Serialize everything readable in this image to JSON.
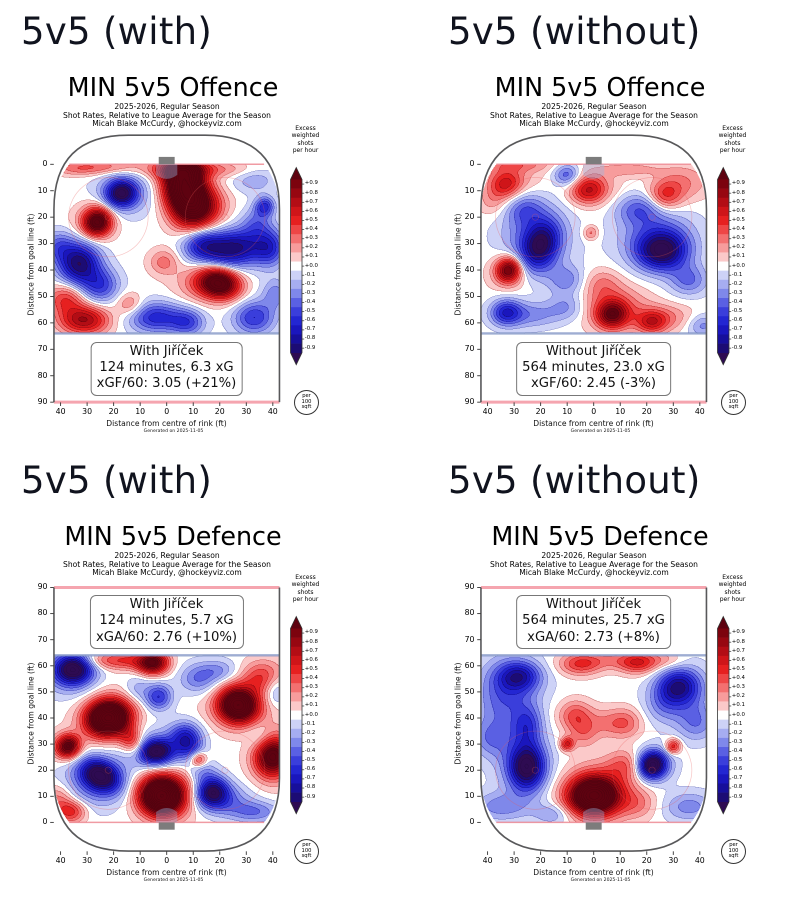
{
  "page": {
    "background": "#ffffff"
  },
  "colorbar": {
    "header_lines": [
      "Excess",
      "weighted",
      "shots",
      "per hour"
    ],
    "tick_labels": [
      "+0.9",
      "+0.8",
      "+0.7",
      "+0.6",
      "+0.5",
      "+0.4",
      "+0.3",
      "+0.2",
      "+0.1",
      "+0.0",
      "-0.1",
      "-0.2",
      "-0.3",
      "-0.4",
      "-0.5",
      "-0.6",
      "-0.7",
      "-0.8",
      "-0.9"
    ],
    "tick_values": [
      0.9,
      0.8,
      0.7,
      0.6,
      0.5,
      0.4,
      0.3,
      0.2,
      0.1,
      0.0,
      -0.1,
      -0.2,
      -0.3,
      -0.4,
      -0.5,
      -0.6,
      -0.7,
      -0.8,
      -0.9
    ],
    "footer_lines": [
      "per",
      "100",
      "sqft"
    ]
  },
  "colormap": {
    "band_step": 0.1,
    "band_colors_neg10_to_pos10": [
      "#2e0b52",
      "#1c0c74",
      "#170f9b",
      "#1a16bd",
      "#2326d2",
      "#3a3edb",
      "#5a60e3",
      "#7f88ea",
      "#a6adf1",
      "#cdd2f7",
      "#ffffff",
      "#fbc9c9",
      "#f79c9c",
      "#f37070",
      "#ee4646",
      "#e62020",
      "#cf1519",
      "#b30d15",
      "#970711",
      "#7c030e",
      "#5e0210"
    ]
  },
  "rink": {
    "boards_color": "#58585a",
    "goal_line_color": "rgba(236,130,140,0.8)",
    "blue_line_color": "rgba(125,145,195,0.75)",
    "center_line_color": "rgba(245,165,175,1)",
    "faceoff_color": "rgba(233,90,90,0.35)",
    "crease_fill": "rgba(150,185,230,0.38)",
    "net_color": "#7c7c7c",
    "tick_color": "#333333"
  },
  "axes": {
    "x_tick_labels": [
      "40",
      "30",
      "20",
      "10",
      "0",
      "10",
      "20",
      "30",
      "40"
    ],
    "x_tick_values": [
      -40,
      -30,
      -20,
      -10,
      0,
      10,
      20,
      30,
      40
    ],
    "y_tick_labels": [
      "0",
      "10",
      "20",
      "30",
      "40",
      "50",
      "60",
      "70",
      "80",
      "90"
    ],
    "y_tick_values": [
      0,
      10,
      20,
      30,
      40,
      50,
      60,
      70,
      80,
      90
    ]
  },
  "chart_data": [
    {
      "type": "heatmap",
      "panel": "offence-with",
      "suptitle": "5v5 (with)",
      "title": "MIN 5v5 Offence",
      "subtitles": [
        "2025-2026, Regular Season",
        "Shot Rates, Relative to League Average for the Season",
        "Micah Blake McCurdy, @hockeyviz.com"
      ],
      "info_box": [
        "With Jiříček",
        "124 minutes, 6.3 xG",
        "xGF/60: 3.05 (+21%)"
      ],
      "xlabel": "Distance from centre of rink (ft)",
      "ylabel": "Distance from goal line (ft)",
      "footnote": "Generated on 2025-11-05",
      "orientation": "offence",
      "x_range_ft": [
        -42.5,
        42.5
      ],
      "y_range_ft": [
        -11,
        90
      ],
      "heat_extent_ft": [
        0,
        64
      ],
      "units": "excess weighted shots per hour per 100 sqft",
      "field_blobs": [
        [
          7,
          9,
          5.5,
          8.5,
          1.75,
          -12
        ],
        [
          14,
          17,
          6,
          5,
          0.55,
          -25
        ],
        [
          4,
          2,
          9,
          2.5,
          0.35,
          0
        ],
        [
          22,
          2,
          9,
          2,
          0.2,
          0
        ],
        [
          -26,
          22,
          3.6,
          3.6,
          0.95,
          0
        ],
        [
          -27,
          21,
          5.5,
          5,
          0.28,
          0
        ],
        [
          -17,
          11,
          4,
          3.5,
          -0.82,
          0
        ],
        [
          -16,
          11,
          8,
          6,
          -0.3,
          0
        ],
        [
          33,
          6,
          6,
          3.5,
          -0.22,
          0
        ],
        [
          37,
          16,
          2.6,
          2.6,
          -0.55,
          0
        ],
        [
          25,
          32,
          9,
          5,
          -0.9,
          -8
        ],
        [
          13,
          30,
          5,
          4,
          -0.5,
          0
        ],
        [
          39,
          32,
          4,
          5,
          -0.45,
          0
        ],
        [
          -33,
          37.5,
          5.5,
          5.5,
          -0.92,
          0
        ],
        [
          -25,
          46,
          5,
          4.5,
          -0.5,
          0
        ],
        [
          -41,
          31,
          4,
          4,
          -0.35,
          0
        ],
        [
          20,
          45,
          5.5,
          4,
          1.15,
          15
        ],
        [
          13,
          45,
          7,
          5,
          0.28,
          0
        ],
        [
          -1,
          37,
          4,
          3.5,
          0.3,
          0
        ],
        [
          -31,
          59,
          6.5,
          3.8,
          0.75,
          0
        ],
        [
          -38,
          51,
          5,
          4,
          0.45,
          0
        ],
        [
          -14,
          53,
          3.5,
          3,
          0.3,
          0
        ],
        [
          -4,
          58,
          7,
          4,
          -0.6,
          0
        ],
        [
          8,
          60,
          4.5,
          3.5,
          -0.45,
          0
        ],
        [
          33,
          58,
          5.5,
          4.5,
          -0.55,
          0
        ],
        [
          41,
          49,
          3.5,
          4,
          -0.3,
          0
        ],
        [
          34,
          22,
          4,
          4,
          -0.3,
          0
        ],
        [
          -33,
          1.5,
          7,
          2,
          0.3,
          0
        ],
        [
          -20,
          1,
          8,
          2,
          0.25,
          0
        ]
      ]
    },
    {
      "type": "heatmap",
      "panel": "offence-without",
      "suptitle": "5v5 (without)",
      "title": "MIN 5v5 Offence",
      "subtitles": [
        "2025-2026, Regular Season",
        "Shot Rates, Relative to League Average for the Season",
        "Micah Blake McCurdy, @hockeyviz.com"
      ],
      "info_box": [
        "Without Jiříček",
        "564 minutes, 23.0 xG",
        "xGF/60: 2.45 (-3%)"
      ],
      "xlabel": "Distance from centre of rink (ft)",
      "ylabel": "Distance from goal line (ft)",
      "footnote": "Generated on 2025-11-05",
      "orientation": "offence",
      "x_range_ft": [
        -42.5,
        42.5
      ],
      "y_range_ft": [
        -11,
        90
      ],
      "heat_extent_ft": [
        0,
        64
      ],
      "units": "excess weighted shots per hour per 100 sqft",
      "field_blobs": [
        [
          -33,
          8,
          4.2,
          3.8,
          0.45,
          0
        ],
        [
          -31,
          5,
          8,
          4,
          0.2,
          0
        ],
        [
          -38,
          14,
          4,
          4,
          0.2,
          0
        ],
        [
          -10,
          4,
          3.5,
          3,
          -0.45,
          0
        ],
        [
          -2,
          10,
          4.5,
          3.5,
          0.5,
          0
        ],
        [
          0,
          8,
          7,
          5,
          0.2,
          0
        ],
        [
          27,
          12,
          4.5,
          4,
          0.45,
          0
        ],
        [
          34,
          7,
          7,
          5,
          0.25,
          0
        ],
        [
          14,
          2,
          8,
          2,
          0.2,
          0
        ],
        [
          -28,
          0,
          10,
          2,
          0.25,
          0
        ],
        [
          -20,
          31,
          4.5,
          6.5,
          -0.72,
          20
        ],
        [
          -22,
          28,
          9,
          9,
          -0.4,
          0
        ],
        [
          -10,
          44,
          5,
          4,
          -0.3,
          0
        ],
        [
          -26,
          17,
          5,
          4,
          -0.3,
          0
        ],
        [
          26,
          33,
          6.5,
          5,
          -0.8,
          0
        ],
        [
          24,
          28,
          10,
          8,
          -0.4,
          0
        ],
        [
          17,
          17,
          6,
          4,
          -0.35,
          0
        ],
        [
          36,
          44,
          5,
          4,
          -0.35,
          0
        ],
        [
          -32,
          40,
          3.2,
          3.2,
          0.8,
          0
        ],
        [
          -32,
          41,
          5.5,
          5,
          0.25,
          0
        ],
        [
          -33,
          56,
          4,
          3.5,
          -0.55,
          0
        ],
        [
          -24,
          57,
          8,
          3.5,
          -0.3,
          0
        ],
        [
          -10,
          54,
          5,
          3.5,
          -0.25,
          0
        ],
        [
          -1,
          26,
          2,
          2,
          0.3,
          0
        ],
        [
          7,
          57,
          4,
          3.6,
          0.75,
          0
        ],
        [
          8,
          54,
          9,
          6,
          0.35,
          0
        ],
        [
          3,
          45,
          5,
          4,
          0.22,
          0
        ],
        [
          22,
          60,
          4,
          3,
          0.45,
          0
        ],
        [
          27,
          58,
          8,
          3.5,
          0.25,
          0
        ],
        [
          41,
          61,
          4,
          3,
          -0.3,
          0
        ]
      ]
    },
    {
      "type": "heatmap",
      "panel": "defence-with",
      "suptitle": "5v5 (with)",
      "title": "MIN 5v5 Defence",
      "subtitles": [
        "2025-2026, Regular Season",
        "Shot Rates, Relative to League Average for the Season",
        "Micah Blake McCurdy, @hockeyviz.com"
      ],
      "info_box": [
        "With Jiříček",
        "124 minutes, 5.7 xG",
        "xGA/60: 2.76 (+10%)"
      ],
      "xlabel": "Distance from centre of rink (ft)",
      "ylabel": "Distance from goal line (ft)",
      "footnote": "Generated on 2025-11-05",
      "orientation": "defence",
      "x_range_ft": [
        -42.5,
        42.5
      ],
      "y_range_ft": [
        -11,
        90
      ],
      "heat_extent_ft": [
        0,
        64
      ],
      "units": "excess weighted shots per hour per 100 sqft",
      "field_blobs": [
        [
          -2,
          10,
          5.5,
          5,
          1.5,
          -15
        ],
        [
          0,
          12,
          9,
          7,
          0.4,
          0
        ],
        [
          -36,
          4,
          4,
          3,
          0.5,
          0
        ],
        [
          -41,
          9,
          4,
          4,
          0.3,
          0
        ],
        [
          17,
          12,
          4.2,
          4.2,
          -0.88,
          0
        ],
        [
          21,
          9,
          7,
          4,
          -0.35,
          0
        ],
        [
          33,
          4,
          7,
          3,
          -0.35,
          0
        ],
        [
          40,
          25,
          4.5,
          5,
          0.9,
          0
        ],
        [
          40,
          26,
          6,
          8,
          0.3,
          0
        ],
        [
          12,
          24,
          2.2,
          2.2,
          0.55,
          0
        ],
        [
          -4,
          27,
          4.5,
          3.2,
          -0.85,
          0
        ],
        [
          -4,
          27,
          8,
          6,
          -0.35,
          0
        ],
        [
          -37,
          29,
          3,
          3,
          0.85,
          0
        ],
        [
          -38,
          29,
          5,
          4,
          0.25,
          0
        ],
        [
          -25,
          18,
          5.5,
          3.8,
          -0.85,
          -30
        ],
        [
          -26,
          16,
          9,
          7,
          -0.4,
          0
        ],
        [
          -22,
          40,
          5.5,
          4.5,
          1.4,
          10
        ],
        [
          -22,
          40,
          7.5,
          6.5,
          0.4,
          0
        ],
        [
          27,
          45,
          5,
          4.5,
          1.2,
          -20
        ],
        [
          27,
          44,
          8,
          6,
          0.35,
          0
        ],
        [
          35,
          33,
          4,
          4,
          -0.2,
          0
        ],
        [
          35,
          54,
          5,
          4,
          0.3,
          0
        ],
        [
          -5,
          61,
          4,
          3,
          1.0,
          0
        ],
        [
          -14,
          62,
          6,
          2.5,
          0.35,
          0
        ],
        [
          -11,
          51,
          3.5,
          3.5,
          -0.2,
          0
        ],
        [
          -25,
          62,
          7,
          2.5,
          0.3,
          0
        ],
        [
          -35,
          59,
          5,
          4,
          -0.88,
          0
        ],
        [
          -36,
          57,
          7,
          6,
          -0.35,
          0
        ],
        [
          7,
          33,
          4.2,
          3.8,
          -0.55,
          0
        ],
        [
          9,
          28,
          3.5,
          3.5,
          -0.35,
          0
        ],
        [
          13,
          20,
          3.5,
          3,
          -0.25,
          0
        ],
        [
          -3,
          48,
          3.5,
          3.5,
          -0.55,
          0
        ],
        [
          12,
          55,
          5,
          4,
          -0.35,
          0
        ],
        [
          20,
          58,
          5,
          3,
          -0.25,
          0
        ],
        [
          37,
          58,
          6,
          4,
          0.2,
          0
        ],
        [
          41,
          50,
          3,
          4,
          -0.25,
          0
        ],
        [
          -13,
          31,
          3,
          4,
          0.5,
          30
        ]
      ]
    },
    {
      "type": "heatmap",
      "panel": "defence-without",
      "suptitle": "5v5 (without)",
      "title": "MIN 5v5 Defence",
      "subtitles": [
        "2025-2026, Regular Season",
        "Shot Rates, Relative to League Average for the Season",
        "Micah Blake McCurdy, @hockeyviz.com"
      ],
      "info_box": [
        "Without Jiříček",
        "564 minutes, 25.7 xG",
        "xGA/60: 2.73 (+8%)"
      ],
      "xlabel": "Distance from centre of rink (ft)",
      "ylabel": "Distance from goal line (ft)",
      "footnote": "Generated on 2025-11-05",
      "orientation": "defence",
      "x_range_ft": [
        -42.5,
        42.5
      ],
      "y_range_ft": [
        -11,
        90
      ],
      "heat_extent_ft": [
        0,
        64
      ],
      "units": "excess weighted shots per hour per 100 sqft",
      "field_blobs": [
        [
          0,
          10,
          6.5,
          5,
          1.35,
          0
        ],
        [
          2,
          12,
          9.5,
          7.5,
          0.38,
          0
        ],
        [
          17,
          7,
          5,
          4,
          0.22,
          0
        ],
        [
          12,
          22,
          5,
          4,
          0.3,
          0
        ],
        [
          -25,
          21,
          4.5,
          6,
          -0.8,
          0
        ],
        [
          -26,
          22,
          7,
          8,
          -0.35,
          0
        ],
        [
          -35,
          6,
          8,
          4,
          -0.3,
          0
        ],
        [
          -15,
          3,
          5,
          3,
          -0.25,
          0
        ],
        [
          22,
          22,
          3.5,
          3.5,
          -0.85,
          0
        ],
        [
          23,
          22,
          5,
          4.5,
          -0.4,
          0
        ],
        [
          36,
          6,
          7,
          4,
          -0.3,
          0
        ],
        [
          30,
          29,
          2,
          2,
          0.55,
          0
        ],
        [
          -10,
          30,
          1.8,
          1.8,
          0.55,
          0
        ],
        [
          -7,
          41,
          4.5,
          4,
          0.38,
          0
        ],
        [
          -4,
          34,
          4,
          4,
          0.25,
          0
        ],
        [
          12,
          38,
          4.5,
          4,
          0.32,
          0
        ],
        [
          4,
          38,
          5,
          4,
          0.2,
          0
        ],
        [
          -5,
          60.5,
          5.5,
          3,
          0.42,
          0
        ],
        [
          17,
          61,
          5,
          3,
          0.45,
          0
        ],
        [
          8,
          62,
          10,
          2.5,
          0.22,
          0
        ],
        [
          28,
          62,
          5,
          2.5,
          0.2,
          0
        ],
        [
          -28,
          56,
          5.5,
          3.8,
          -0.55,
          0
        ],
        [
          -30,
          52,
          8,
          8,
          -0.28,
          0
        ],
        [
          -25,
          37,
          4,
          5.5,
          -0.45,
          0
        ],
        [
          -35,
          45,
          7,
          11,
          -0.25,
          0
        ],
        [
          -39,
          32,
          5,
          5,
          -0.25,
          0
        ],
        [
          32,
          52,
          5.5,
          4.5,
          -0.6,
          0
        ],
        [
          33,
          50,
          7,
          8,
          -0.3,
          0
        ],
        [
          39,
          38,
          5,
          5,
          -0.3,
          0
        ],
        [
          26,
          45,
          5,
          5,
          -0.2,
          0
        ]
      ]
    }
  ]
}
